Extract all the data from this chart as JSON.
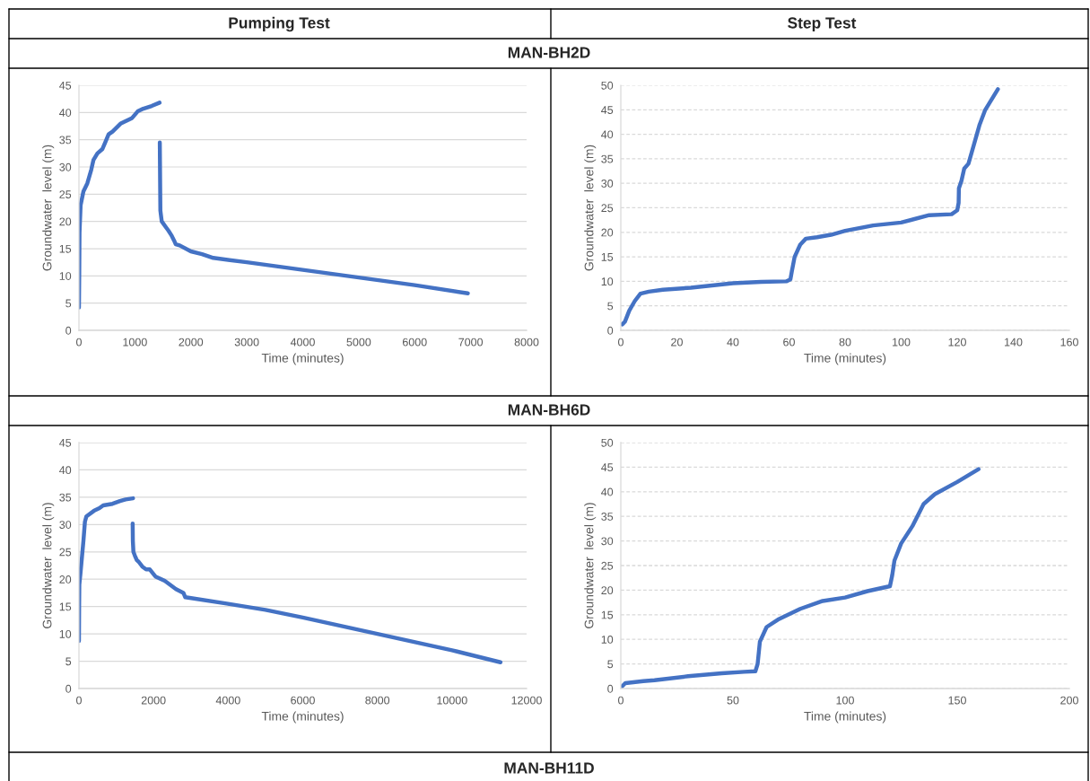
{
  "chart_data": [
    {
      "type": "line",
      "title": "Pumping Test",
      "annotations": [
        "MAN-BH2D"
      ],
      "xlabel": "Time (minutes)",
      "ylabel": "Groundwater  level (m)",
      "xlim": [
        0,
        8000
      ],
      "xticks": [
        0,
        1000,
        2000,
        3000,
        4000,
        5000,
        6000,
        7000,
        8000
      ],
      "ylim": [
        0,
        45
      ],
      "yticks": [
        0,
        5,
        10,
        15,
        20,
        25,
        30,
        35,
        40,
        45
      ],
      "grid": "y",
      "marker": "none",
      "line_style": "solid",
      "series": [
        {
          "color": "#4472c4",
          "x": [
            0,
            5,
            10,
            30,
            80,
            150,
            220,
            260,
            330,
            420,
            470,
            530,
            600,
            750,
            950,
            1050,
            1150,
            1300,
            1440,
            1442,
            1445,
            1450,
            1455,
            1480,
            1550,
            1600,
            1650,
            1700,
            1730,
            1800,
            2000,
            2200,
            2400,
            3000,
            4000,
            5000,
            6000,
            6950
          ],
          "values": [
            4.2,
            10,
            18,
            23,
            25.5,
            27,
            29.5,
            31.3,
            32.5,
            33.3,
            34.5,
            36,
            36.5,
            38,
            39,
            40.2,
            40.7,
            41.2,
            41.8,
            null,
            34.5,
            28,
            22,
            20,
            19,
            18.3,
            17.5,
            16.5,
            15.8,
            15.6,
            14.5,
            14,
            13.3,
            12.5,
            11.1,
            9.7,
            8.3,
            6.8
          ]
        }
      ]
    },
    {
      "type": "line",
      "title": "Step Test",
      "xlabel": "Time (minutes)",
      "ylabel": "Groundwater  level (m)",
      "xlim": [
        0,
        160
      ],
      "xticks": [
        0,
        20,
        40,
        60,
        80,
        100,
        120,
        140,
        160
      ],
      "ylim": [
        0,
        50
      ],
      "yticks": [
        0,
        5,
        10,
        15,
        20,
        25,
        30,
        35,
        40,
        45,
        50
      ],
      "grid": "y",
      "marker": "none",
      "line_style": "solid",
      "series": [
        {
          "color": "#4472c4",
          "x": [
            0.5,
            1.5,
            3,
            5,
            7,
            10,
            15,
            25,
            40,
            50,
            59,
            60.5,
            61,
            62,
            64,
            66,
            70,
            75,
            80,
            90,
            100,
            110,
            118,
            120,
            120.5,
            120.6,
            121.5,
            122.5,
            124,
            126,
            128,
            130,
            134.5
          ],
          "values": [
            1.2,
            1.8,
            4,
            6,
            7.5,
            7.9,
            8.3,
            8.7,
            9.6,
            9.9,
            10,
            10.4,
            12,
            15,
            17.5,
            18.7,
            19,
            19.5,
            20.3,
            21.4,
            22,
            23.5,
            23.7,
            24.5,
            26,
            29,
            30.5,
            33,
            34,
            38,
            42,
            45,
            49.2
          ]
        }
      ]
    },
    {
      "type": "line",
      "annotations": [
        "MAN-BH6D",
        "MAN-BH11D"
      ],
      "xlabel": "Time (minutes)",
      "ylabel": "Groundwater  level (m)",
      "xlim": [
        0,
        12000
      ],
      "xticks": [
        0,
        2000,
        4000,
        6000,
        8000,
        10000,
        12000
      ],
      "ylim": [
        0,
        45
      ],
      "yticks": [
        0,
        5,
        10,
        15,
        20,
        25,
        30,
        35,
        40,
        45
      ],
      "grid": "y",
      "marker": "none",
      "line_style": "solid",
      "series": [
        {
          "color": "#4472c4",
          "x": [
            0,
            5,
            10,
            40,
            80,
            120,
            160,
            200,
            400,
            550,
            650,
            900,
            1100,
            1250,
            1450,
            1445,
            1440,
            1445,
            1460,
            1500,
            1550,
            1600,
            1700,
            1800,
            1900,
            2050,
            2300,
            2600,
            2800,
            2850,
            4000,
            5000,
            6000,
            8000,
            10000,
            11300
          ],
          "values": [
            8.7,
            15,
            19,
            21,
            24,
            27,
            30.5,
            31.5,
            32.5,
            33,
            33.5,
            33.8,
            34.3,
            34.6,
            34.8,
            null,
            30.2,
            27,
            25,
            24.3,
            23.5,
            23.2,
            22.3,
            21.8,
            21.8,
            20.5,
            19.7,
            18.2,
            17.5,
            16.7,
            15.5,
            14.4,
            13,
            10,
            7,
            4.8
          ]
        }
      ]
    },
    {
      "type": "line",
      "xlabel": "Time (minutes)",
      "ylabel": "Groundwater  level (m)",
      "xlim": [
        0,
        200
      ],
      "xticks": [
        0,
        50,
        100,
        150,
        200
      ],
      "ylim": [
        0,
        50
      ],
      "yticks": [
        0,
        5,
        10,
        15,
        20,
        25,
        30,
        35,
        40,
        45,
        50
      ],
      "grid": "y",
      "marker": "none",
      "line_style": "solid",
      "series": [
        {
          "color": "#4472c4",
          "x": [
            0.5,
            2,
            10,
            15,
            30,
            45,
            55,
            60,
            61,
            62,
            65,
            70,
            80,
            90,
            100,
            110,
            120,
            121,
            122,
            125,
            130,
            135,
            140,
            150,
            159.5
          ],
          "values": [
            0.4,
            1.1,
            1.5,
            1.7,
            2.5,
            3.1,
            3.4,
            3.5,
            5,
            9.5,
            12.5,
            14,
            16.2,
            17.8,
            18.5,
            19.8,
            20.8,
            23,
            26,
            29.5,
            33,
            37.5,
            39.5,
            42,
            44.6
          ]
        }
      ]
    }
  ]
}
